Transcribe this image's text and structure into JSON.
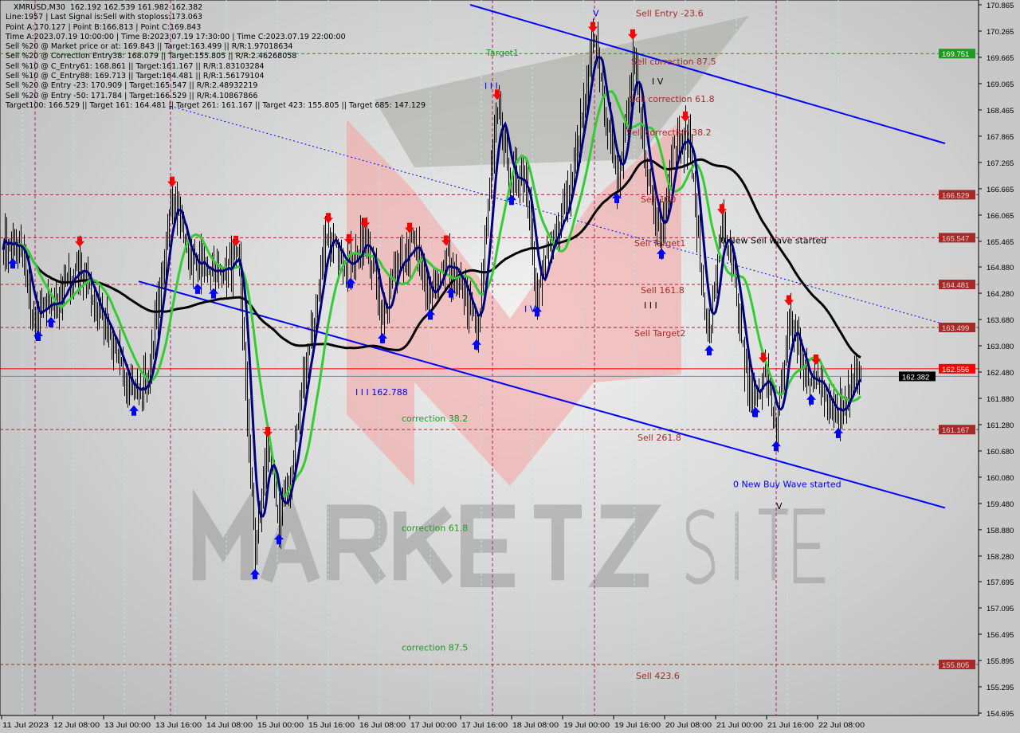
{
  "chart_data": {
    "type": "candlestick",
    "symbol": "XMRUSD,M30",
    "ohlc_header": "162.192 162.539 161.982 162.382",
    "y_range": [
      154.695,
      170.865
    ],
    "y_ticks": [
      "170.865",
      "170.265",
      "169.665",
      "169.065",
      "168.465",
      "167.865",
      "167.265",
      "166.665",
      "166.065",
      "165.465",
      "164.880",
      "164.280",
      "163.680",
      "163.080",
      "162.480",
      "161.880",
      "161.280",
      "160.680",
      "160.080",
      "159.480",
      "158.880",
      "158.280",
      "157.695",
      "157.095",
      "156.495",
      "155.895",
      "155.295",
      "154.695"
    ],
    "x_ticks": [
      "11 Jul 2023",
      "12 Jul 08:00",
      "13 Jul 00:00",
      "13 Jul 16:00",
      "14 Jul 08:00",
      "15 Jul 00:00",
      "15 Jul 16:00",
      "16 Jul 08:00",
      "17 Jul 00:00",
      "17 Jul 16:00",
      "18 Jul 08:00",
      "19 Jul 00:00",
      "19 Jul 16:00",
      "20 Jul 08:00",
      "21 Jul 00:00",
      "21 Jul 16:00",
      "22 Jul 08:00"
    ],
    "x_tick_times": [
      "2023-07-11 16:00",
      "2023-07-12 08:00",
      "2023-07-13 00:00",
      "2023-07-13 16:00",
      "2023-07-14 08:00",
      "2023-07-15 00:00",
      "2023-07-15 16:00",
      "2023-07-16 08:00",
      "2023-07-17 00:00",
      "2023-07-17 16:00",
      "2023-07-18 08:00",
      "2023-07-19 00:00",
      "2023-07-19 16:00",
      "2023-07-20 08:00",
      "2023-07-21 00:00",
      "2023-07-21 16:00",
      "2023-07-22 08:00"
    ],
    "price_path": [
      [
        "2023-07-11 16:30",
        165.52
      ],
      [
        "2023-07-11 23:00",
        165.15
      ],
      [
        "2023-07-12 01:30",
        163.7
      ],
      [
        "2023-07-12 09:00",
        164.06
      ],
      [
        "2023-07-12 16:30",
        164.97
      ],
      [
        "2023-07-13 02:30",
        163.15
      ],
      [
        "2023-07-13 08:30",
        162.06
      ],
      [
        "2023-07-13 13:30",
        162.24
      ],
      [
        "2023-07-13 17:30",
        164.06
      ],
      [
        "2023-07-13 21:00",
        166.61
      ],
      [
        "2023-07-14 03:30",
        164.97
      ],
      [
        "2023-07-14 11:00",
        164.79
      ],
      [
        "2023-07-14 18:30",
        164.97
      ],
      [
        "2023-07-14 22:00",
        160.06
      ],
      [
        "2023-07-14 23:30",
        158.24
      ],
      [
        "2023-07-15 03:00",
        160.79
      ],
      [
        "2023-07-15 07:00",
        159.15
      ],
      [
        "2023-07-15 10:30",
        160.06
      ],
      [
        "2023-07-15 15:30",
        162.79
      ],
      [
        "2023-07-15 22:00",
        165.52
      ],
      [
        "2023-07-16 05:30",
        164.97
      ],
      [
        "2023-07-16 10:30",
        165.52
      ],
      [
        "2023-07-16 15:30",
        163.7
      ],
      [
        "2023-07-16 20:30",
        165.15
      ],
      [
        "2023-07-17 01:30",
        165.33
      ],
      [
        "2023-07-17 06:30",
        164.06
      ],
      [
        "2023-07-17 11:30",
        164.97
      ],
      [
        "2023-07-17 16:30",
        164.43
      ],
      [
        "2023-07-17 21:30",
        163.33
      ],
      [
        "2023-07-18 00:00",
        165.88
      ],
      [
        "2023-07-18 03:30",
        168.61
      ],
      [
        "2023-07-18 07:30",
        166.97
      ],
      [
        "2023-07-18 12:30",
        166.79
      ],
      [
        "2023-07-18 16:00",
        164.06
      ],
      [
        "2023-07-18 20:00",
        165.52
      ],
      [
        "2023-07-19 01:00",
        166.24
      ],
      [
        "2023-07-19 06:00",
        168.25
      ],
      [
        "2023-07-19 10:00",
        170.13
      ],
      [
        "2023-07-19 13:30",
        168.25
      ],
      [
        "2023-07-19 17:30",
        166.81
      ],
      [
        "2023-07-19 22:00",
        169.84
      ],
      [
        "2023-07-20 02:00",
        166.97
      ],
      [
        "2023-07-20 07:00",
        165.52
      ],
      [
        "2023-07-20 10:30",
        167.7
      ],
      [
        "2023-07-20 15:30",
        167.88
      ],
      [
        "2023-07-20 19:30",
        164.61
      ],
      [
        "2023-07-20 22:00",
        163.15
      ],
      [
        "2023-07-21 01:30",
        165.88
      ],
      [
        "2023-07-21 05:30",
        164.61
      ],
      [
        "2023-07-21 10:30",
        161.88
      ],
      [
        "2023-07-21 15:30",
        162.42
      ],
      [
        "2023-07-21 19:00",
        161.15
      ],
      [
        "2023-07-21 23:00",
        163.7
      ],
      [
        "2023-07-22 04:00",
        162.42
      ],
      [
        "2023-07-22 09:00",
        162.24
      ],
      [
        "2023-07-22 14:00",
        161.52
      ],
      [
        "2023-07-22 19:00",
        162.24
      ],
      [
        "2023-07-22 21:30",
        162.38
      ]
    ],
    "levels": [
      {
        "price": 169.751,
        "label": "169.751",
        "color": "#1e9a1e"
      },
      {
        "price": 166.529,
        "label": "166.529",
        "color": "#a52a2a"
      },
      {
        "price": 165.547,
        "label": "165.547",
        "color": "#a52a2a"
      },
      {
        "price": 164.481,
        "label": "164.481",
        "color": "#a52a2a"
      },
      {
        "price": 163.499,
        "label": "163.499",
        "color": "#a52a2a"
      },
      {
        "price": 162.556,
        "label": "162.556",
        "color": "#ff0000"
      },
      {
        "price": 162.382,
        "label": "162.382",
        "color": "#000000"
      },
      {
        "price": 161.167,
        "label": "161.167",
        "color": "#a52a2a"
      },
      {
        "price": 155.805,
        "label": "155.805",
        "color": "#a52a2a"
      }
    ],
    "annotations": [
      {
        "text": "Target1",
        "time": "2023-07-18 00:00",
        "price": 169.7,
        "color": "#1e9a1e"
      },
      {
        "text": "Sell Entry -23.6",
        "time": "2023-07-19 23:00",
        "price": 170.6,
        "color": "#a52a2a"
      },
      {
        "text": "Sell correction 87.5",
        "time": "2023-07-19 21:30",
        "price": 169.5,
        "color": "#a52a2a"
      },
      {
        "text": "Sell correction 61.8",
        "time": "2023-07-19 21:00",
        "price": 168.65,
        "color": "#a52a2a"
      },
      {
        "text": "Sell correction 38.2",
        "time": "2023-07-19 20:00",
        "price": 167.88,
        "color": "#a52a2a"
      },
      {
        "text": "Sell 100",
        "time": "2023-07-20 00:30",
        "price": 166.35,
        "color": "#a52a2a"
      },
      {
        "text": "Sell Target1",
        "time": "2023-07-19 22:30",
        "price": 165.35,
        "color": "#a52a2a"
      },
      {
        "text": "0 New Sell wave started",
        "time": "2023-07-21 01:30",
        "price": 165.42,
        "color": "#000000"
      },
      {
        "text": "Sell 161.8",
        "time": "2023-07-20 00:30",
        "price": 164.28,
        "color": "#a52a2a"
      },
      {
        "text": "Sell Target2",
        "time": "2023-07-19 22:30",
        "price": 163.3,
        "color": "#a52a2a"
      },
      {
        "text": "I I I 162.788",
        "time": "2023-07-16 07:00",
        "price": 161.95,
        "color": "#0000ff"
      },
      {
        "text": "correction 38.2",
        "time": "2023-07-16 21:30",
        "price": 161.35,
        "color": "#1e9a1e"
      },
      {
        "text": "Sell 261.8",
        "time": "2023-07-19 23:30",
        "price": 160.92,
        "color": "#a52a2a"
      },
      {
        "text": "0 New Buy Wave started",
        "time": "2023-07-21 05:30",
        "price": 159.85,
        "color": "#0000ff"
      },
      {
        "text": "correction 61.8",
        "time": "2023-07-16 21:30",
        "price": 158.85,
        "color": "#1e9a1e"
      },
      {
        "text": "correction 87.5",
        "time": "2023-07-16 21:30",
        "price": 156.12,
        "color": "#1e9a1e"
      },
      {
        "text": "Sell 423.6",
        "time": "2023-07-19 23:00",
        "price": 155.48,
        "color": "#a52a2a"
      },
      {
        "text": "I I I",
        "time": "2023-07-17 23:30",
        "price": 168.95,
        "color": "#0000ff"
      },
      {
        "text": "I V",
        "time": "2023-07-20 04:00",
        "price": 169.05,
        "color": "#000000"
      },
      {
        "text": "I I I",
        "time": "2023-07-20 01:30",
        "price": 164.08,
        "color": "#000000"
      },
      {
        "text": "I V",
        "time": "2023-07-18 12:00",
        "price": 163.85,
        "color": "#0000ff"
      },
      {
        "text": "V",
        "time": "2023-07-19 09:30",
        "price": 170.6,
        "color": "#0000ff"
      },
      {
        "text": "V",
        "time": "2023-07-21 19:00",
        "price": 159.35,
        "color": "#000000"
      }
    ],
    "channel_lines": [
      {
        "from": [
          "2023-07-17 19:00",
          170.865
        ],
        "to": [
          "2023-07-24 00:00",
          167.7
        ],
        "style": "solid",
        "color": "#0000ff"
      },
      {
        "from": [
          "2023-07-13 11:00",
          164.55
        ],
        "to": [
          "2023-07-24 00:00",
          159.38
        ],
        "style": "solid",
        "color": "#0000ff"
      },
      {
        "from": [
          "2023-07-13 21:00",
          168.55
        ],
        "to": [
          "2023-07-24 00:00",
          163.57
        ],
        "style": "dotted",
        "color": "#0000ff"
      }
    ],
    "vertical_markers": [
      "2023-07-12 02:30",
      "2023-07-13 21:00",
      "2023-07-18 02:00",
      "2023-07-19 10:00",
      "2023-07-21 19:00"
    ],
    "moving_averages": [
      {
        "period": 100,
        "color": "#000000"
      },
      {
        "period": 21,
        "color": "#33cc33"
      },
      {
        "period": 8,
        "color": "#000080"
      }
    ],
    "colors": {
      "bars": "#000000",
      "sell_arrow": "#ff0000",
      "buy_arrow": "#0000ff",
      "background": "#cfcfcf"
    }
  },
  "info_panel": [
    "Line:1957 | Last Signal is:Sell with stoploss:173.063",
    "Point A:170.127 | Point B:166.813 | Point C:169.843",
    "Time A:2023.07.19 10:00:00 | Time B:2023.07.19 17:30:00 | Time C:2023.07.19 22:00:00",
    "Sell %20 @ Market price or at: 169.843 || Target:163.499 || R/R:1.97018634",
    "Sell %20 @ Correction Entry38: 168.079 || Target:155.805 || R/R:2.46268058",
    "Sell %10 @ C_Entry61: 168.861 || Target:161.167 || R/R:1.83103284",
    "Sell %10 @ C_Entry88: 169.713 || Target:164.481 || R/R:1.56179104",
    "Sell %20 @ Entry -23: 170.909 | Target:165.547 || R/R:2.48932219",
    "Sell %20 @ Entry -50: 171.784 | Target:166.529 || R/R:4.10867866",
    "Target100: 166.529 || Target 161: 164.481 || Target 261: 161.167 || Target 423: 155.805 || Target 685: 147.129"
  ],
  "watermark": "MARKETZ SITE"
}
